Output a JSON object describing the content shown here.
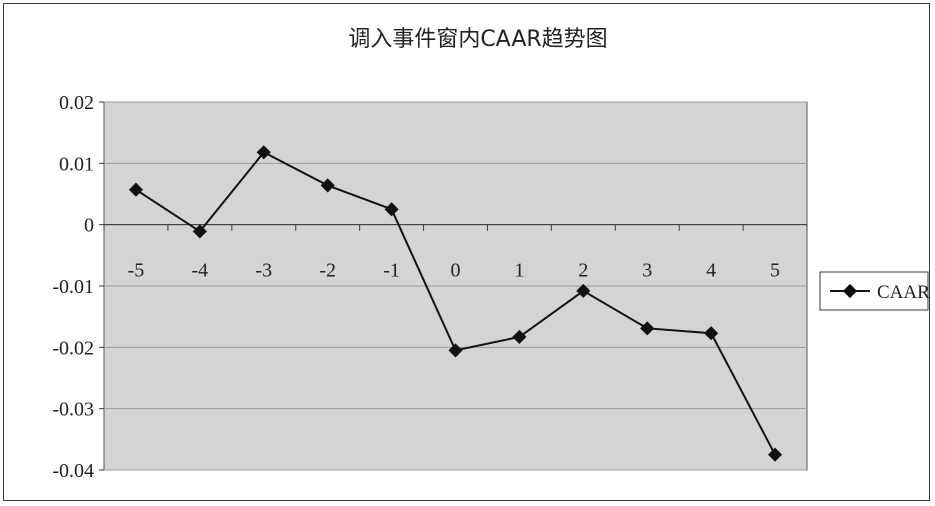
{
  "chart_data": {
    "type": "line",
    "title": "调入事件窗内CAAR趋势图",
    "xlabel": "",
    "ylabel": "",
    "categories": [
      "-5",
      "-4",
      "-3",
      "-2",
      "-1",
      "0",
      "1",
      "2",
      "3",
      "4",
      "5"
    ],
    "series": [
      {
        "name": "CAAR",
        "values": [
          0.0057,
          -0.0011,
          0.0118,
          0.0064,
          0.0025,
          -0.0205,
          -0.0183,
          -0.0108,
          -0.0169,
          -0.0177,
          -0.0375
        ]
      }
    ],
    "ylim": [
      -0.04,
      0.02
    ],
    "yticks": [
      0.02,
      0.01,
      0,
      -0.01,
      -0.02,
      -0.03,
      -0.04
    ],
    "ytick_labels": [
      "0.02",
      "0.01",
      "0",
      "-0.01",
      "-0.02",
      "-0.03",
      "-0.04"
    ],
    "grid": true,
    "legend_position": "right",
    "colors": {
      "line": "#111111",
      "plot_background": "#d4d4d4",
      "gridline": "#9a9a9a"
    }
  }
}
